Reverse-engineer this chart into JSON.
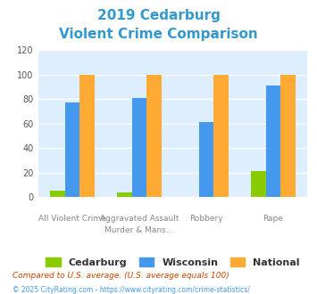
{
  "title_line1": "2019 Cedarburg",
  "title_line2": "Violent Crime Comparison",
  "title_color": "#3399cc",
  "cat_labels_top": [
    "",
    "Aggravated Assault",
    "Robbery",
    ""
  ],
  "cat_labels_bottom": [
    "All Violent Crime",
    "Murder & Mans...",
    "",
    "Rape"
  ],
  "cedarburg": [
    5,
    4,
    0,
    21
  ],
  "wisconsin": [
    77,
    81,
    61,
    91
  ],
  "national": [
    100,
    100,
    100,
    100
  ],
  "cedarburg_color": "#88cc00",
  "wisconsin_color": "#4499ee",
  "national_color": "#ffaa33",
  "ylim": [
    0,
    120
  ],
  "yticks": [
    0,
    20,
    40,
    60,
    80,
    100,
    120
  ],
  "plot_bg": "#ddeeff",
  "grid_color": "#ffffff",
  "legend_labels": [
    "Cedarburg",
    "Wisconsin",
    "National"
  ],
  "footnote1": "Compared to U.S. average. (U.S. average equals 100)",
  "footnote2": "© 2025 CityRating.com - https://www.cityrating.com/crime-statistics/",
  "footnote1_color": "#cc4400",
  "footnote2_color": "#4499ee"
}
